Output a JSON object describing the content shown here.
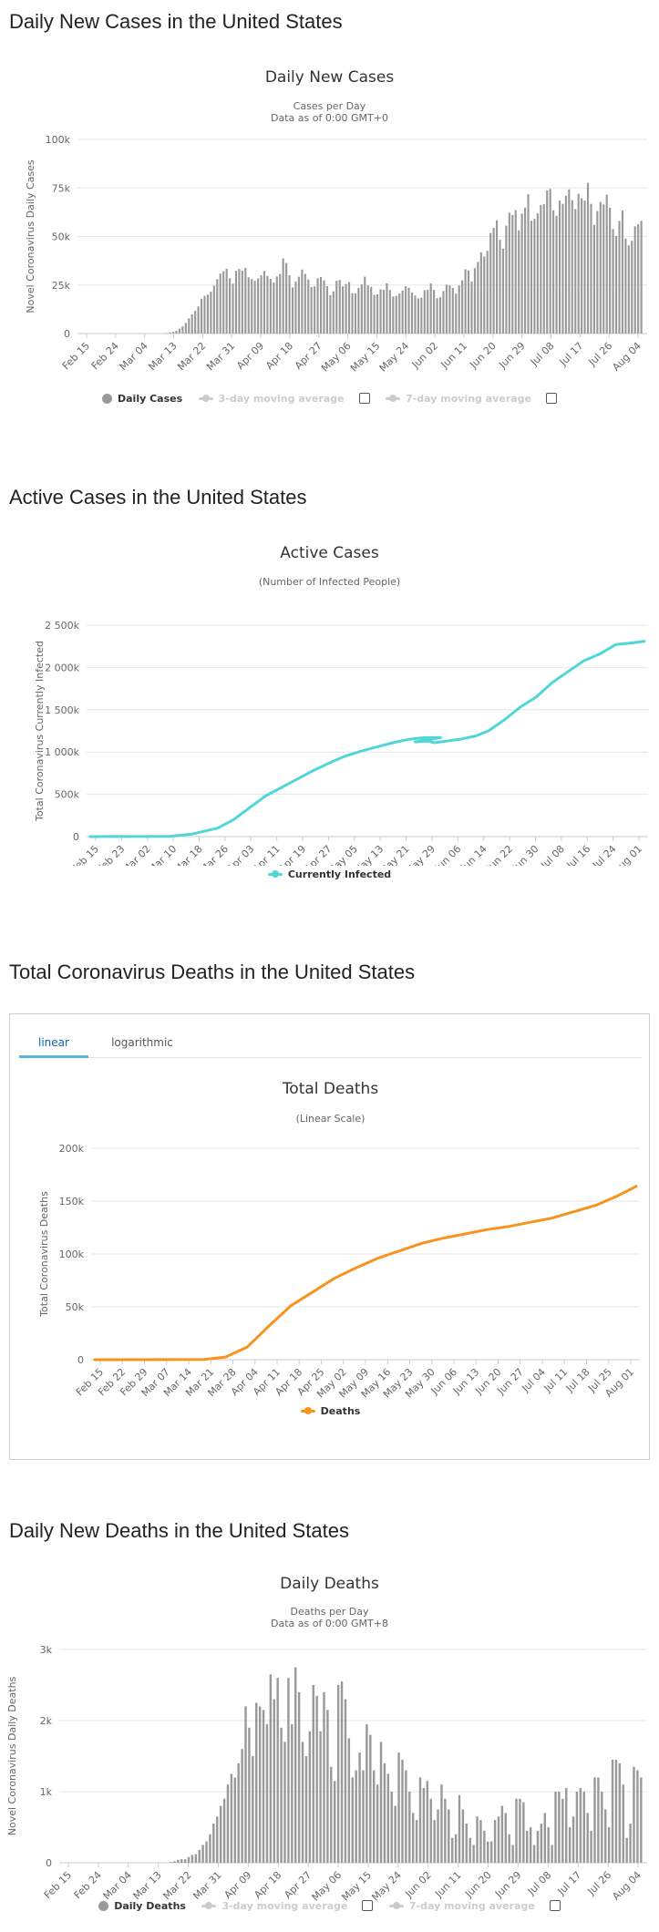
{
  "sections": {
    "new_cases": "Daily New Cases in the United States",
    "active": "Active Cases in the United States",
    "deaths": "Total Coronavirus Deaths in the United States",
    "new_deaths": "Daily New Deaths in the United States"
  },
  "deaths_tabs": {
    "linear": "linear",
    "log": "logarithmic"
  },
  "legend_common": {
    "ma3": "3-day moving average",
    "ma7": "7-day moving average"
  },
  "colors": {
    "gray_bar": "#999999",
    "teal": "#50d6d8",
    "orange": "#f7931e",
    "grid": "#e6e6e6",
    "axis": "#cccccc"
  },
  "chart_data": [
    {
      "id": "daily_new_cases",
      "type": "bar",
      "title": "Daily New Cases",
      "subtitle": "Cases per Day",
      "subtitle2": "Data as of 0:00 GMT+0",
      "ylabel": "Novel Coronavirus Daily Cases",
      "ylim": [
        0,
        100000
      ],
      "yticks": [
        0,
        25000,
        50000,
        75000,
        100000
      ],
      "ytick_labels": [
        "0",
        "25k",
        "50k",
        "75k",
        "100k"
      ],
      "x_start": "Feb 15",
      "xtick_labels": [
        "Feb 15",
        "Feb 24",
        "Mar 04",
        "Mar 13",
        "Mar 22",
        "Mar 31",
        "Apr 09",
        "Apr 18",
        "Apr 27",
        "May 06",
        "May 15",
        "May 24",
        "Jun 02",
        "Jun 11",
        "Jun 20",
        "Jun 29",
        "Jul 08",
        "Jul 17",
        "Jul 26",
        "Aug 04"
      ],
      "legend": "Daily Cases",
      "values": [
        0,
        0,
        0,
        0,
        0,
        0,
        0,
        0,
        0,
        0,
        0,
        0,
        0,
        0,
        0,
        0,
        0,
        0,
        0,
        0,
        0,
        0,
        0,
        0,
        0,
        0,
        100,
        200,
        500,
        900,
        1500,
        2500,
        3700,
        5500,
        7800,
        9900,
        11700,
        14000,
        17900,
        19400,
        20000,
        21500,
        24700,
        28000,
        30900,
        32100,
        33400,
        28500,
        25700,
        32300,
        33300,
        32400,
        33800,
        29000,
        28100,
        27200,
        28400,
        30000,
        32200,
        29700,
        28200,
        26300,
        29400,
        30700,
        38700,
        36300,
        30000,
        23700,
        26800,
        29300,
        33000,
        30700,
        27800,
        23900,
        24300,
        28500,
        29200,
        27400,
        24400,
        19800,
        21700,
        27200,
        27600,
        24300,
        25500,
        26500,
        20800,
        20700,
        23500,
        25300,
        29300,
        24800,
        24000,
        19900,
        20200,
        22800,
        22500,
        25900,
        22400,
        19100,
        19400,
        20600,
        22200,
        24300,
        23600,
        21200,
        19600,
        18100,
        18500,
        22300,
        22500,
        25800,
        22500,
        18200,
        18700,
        21900,
        25200,
        24900,
        23500,
        20600,
        24800,
        27400,
        33100,
        32500,
        26800,
        33700,
        36900,
        41800,
        39700,
        42600,
        51800,
        54400,
        58300,
        48300,
        43700,
        55600,
        62200,
        61100,
        63600,
        53100,
        61800,
        64900,
        71800,
        58100,
        59100,
        61900,
        66200,
        66600,
        73800,
        74500,
        63500,
        60600,
        68500,
        66800,
        71000,
        74300,
        68700,
        64100,
        72000,
        69700,
        68500,
        77600,
        66800,
        56000,
        63100,
        67800,
        66500,
        71500,
        64800,
        53800,
        50300,
        58000,
        63400,
        49000,
        45400,
        47800,
        55200,
        56300,
        58000
      ]
    },
    {
      "id": "active_cases",
      "type": "line",
      "title": "Active Cases",
      "subtitle": "(Number of Infected People)",
      "ylabel": "Total Coronavirus Currently Infected",
      "ylim": [
        0,
        2500000
      ],
      "yticks": [
        0,
        500000,
        1000000,
        1500000,
        2000000,
        2500000
      ],
      "ytick_labels": [
        "0",
        "500k",
        "1 000k",
        "1 500k",
        "2 000k",
        "2 500k"
      ],
      "xtick_labels": [
        "Feb 15",
        "Feb 23",
        "Mar 02",
        "Mar 10",
        "Mar 18",
        "Mar 26",
        "Apr 03",
        "Apr 11",
        "Apr 19",
        "Apr 27",
        "May 05",
        "May 13",
        "May 21",
        "May 29",
        "Jun 06",
        "Jun 14",
        "Jun 22",
        "Jun 30",
        "Jul 08",
        "Jul 16",
        "Jul 24",
        "Aug 01"
      ],
      "legend": "Currently Infected",
      "x_days": [
        0,
        25,
        32,
        40,
        45,
        50,
        55,
        60,
        65,
        70,
        75,
        80,
        85,
        90,
        95,
        100,
        105,
        110,
        102,
        106,
        108,
        112,
        116,
        121,
        125,
        130,
        135,
        140,
        145,
        150,
        155,
        160,
        165,
        170,
        174
      ],
      "values": [
        0,
        2000,
        30000,
        100000,
        200000,
        340000,
        480000,
        580000,
        680000,
        780000,
        870000,
        950000,
        1010000,
        1060000,
        1110000,
        1150000,
        1170000,
        1170000,
        1120000,
        1130000,
        1110000,
        1130000,
        1150000,
        1190000,
        1250000,
        1380000,
        1530000,
        1650000,
        1820000,
        1950000,
        2080000,
        2160000,
        2270000,
        2290000,
        2310000
      ],
      "note": "x_days = days since Feb 15"
    },
    {
      "id": "total_deaths",
      "type": "line",
      "title": "Total Deaths",
      "subtitle": "(Linear Scale)",
      "ylabel": "Total Coronavirus Deaths",
      "ylim": [
        0,
        200000
      ],
      "yticks": [
        0,
        50000,
        100000,
        150000,
        200000
      ],
      "ytick_labels": [
        "0",
        "50k",
        "100k",
        "150k",
        "200k"
      ],
      "xtick_labels": [
        "Feb 15",
        "Feb 22",
        "Feb 29",
        "Mar 07",
        "Mar 14",
        "Mar 21",
        "Mar 28",
        "Apr 04",
        "Apr 11",
        "Apr 18",
        "Apr 25",
        "May 02",
        "May 09",
        "May 16",
        "May 23",
        "May 30",
        "Jun 06",
        "Jun 13",
        "Jun 20",
        "Jun 27",
        "Jul 04",
        "Jul 11",
        "Jul 18",
        "Jul 25",
        "Aug 01"
      ],
      "legend": "Deaths",
      "x_days": [
        0,
        35,
        42,
        49,
        56,
        63,
        70,
        77,
        84,
        91,
        98,
        105,
        112,
        119,
        126,
        133,
        140,
        147,
        154,
        161,
        168,
        174
      ],
      "values": [
        0,
        200,
        2500,
        12000,
        32000,
        51000,
        64000,
        77000,
        87000,
        96000,
        103000,
        110000,
        115000,
        119000,
        123000,
        126000,
        130000,
        134000,
        140000,
        146000,
        155000,
        164000
      ]
    },
    {
      "id": "daily_new_deaths",
      "type": "bar",
      "title": "Daily Deaths",
      "subtitle": "Deaths per Day",
      "subtitle2": "Data as of 0:00 GMT+8",
      "ylabel": "Novel Coronavirus Daily Deaths",
      "ylim": [
        0,
        3000
      ],
      "yticks": [
        0,
        1000,
        2000,
        3000
      ],
      "ytick_labels": [
        "0",
        "1k",
        "2k",
        "3k"
      ],
      "xtick_labels": [
        "Feb 15",
        "Feb 24",
        "Mar 04",
        "Mar 13",
        "Mar 22",
        "Mar 31",
        "Apr 09",
        "Apr 18",
        "Apr 27",
        "May 06",
        "May 15",
        "May 24",
        "Jun 02",
        "Jun 11",
        "Jun 20",
        "Jun 29",
        "Jul 08",
        "Jul 17",
        "Jul 26",
        "Aug 04"
      ],
      "legend": "Daily Deaths",
      "values": [
        0,
        0,
        0,
        0,
        0,
        0,
        0,
        0,
        0,
        0,
        0,
        0,
        0,
        0,
        0,
        0,
        0,
        0,
        0,
        0,
        0,
        0,
        0,
        0,
        0,
        0,
        0,
        0,
        0,
        0,
        10,
        20,
        40,
        50,
        50,
        80,
        110,
        120,
        180,
        250,
        300,
        400,
        550,
        650,
        800,
        900,
        1100,
        1250,
        1200,
        1400,
        1600,
        2200,
        1900,
        1500,
        2250,
        2200,
        2150,
        1950,
        2650,
        2300,
        2600,
        1900,
        1700,
        2600,
        1950,
        2750,
        2400,
        1700,
        1500,
        1850,
        2500,
        2350,
        1850,
        2400,
        2150,
        1350,
        1150,
        2500,
        2550,
        2300,
        1750,
        1200,
        1300,
        1550,
        1300,
        1950,
        1800,
        1300,
        1100,
        1700,
        1400,
        1250,
        1000,
        800,
        1550,
        1450,
        1300,
        1000,
        700,
        600,
        1200,
        1050,
        1150,
        900,
        600,
        750,
        1100,
        900,
        750,
        350,
        400,
        950,
        750,
        550,
        350,
        250,
        650,
        600,
        450,
        300,
        300,
        600,
        650,
        800,
        700,
        400,
        250,
        900,
        900,
        850,
        450,
        500,
        250,
        450,
        550,
        700,
        500,
        250,
        1000,
        1000,
        900,
        1050,
        500,
        650,
        1000,
        1050,
        1000,
        700,
        450,
        1200,
        1200,
        1000,
        750,
        500,
        1450,
        1450,
        1400,
        1100,
        350,
        550,
        1350,
        1300,
        1200
      ]
    }
  ]
}
